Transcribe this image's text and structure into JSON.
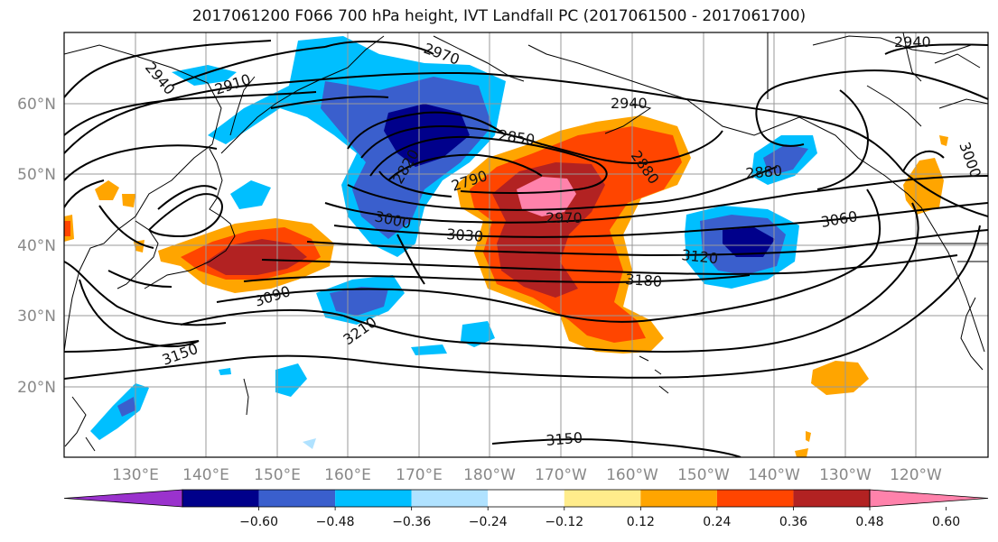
{
  "title": "2017061200 F066 700 hPa height, IVT Landfall PC (2017061500 - 2017061700)",
  "map": {
    "lat_labels": [
      "60°N",
      "50°N",
      "40°N",
      "30°N",
      "20°N"
    ],
    "lon_labels": [
      "130°E",
      "140°E",
      "150°E",
      "160°E",
      "170°E",
      "180°W",
      "170°W",
      "160°W",
      "150°W",
      "140°W",
      "130°W",
      "120°W"
    ],
    "contour_labels": [
      "2970",
      "2910",
      "2940",
      "2940",
      "2940",
      "2850",
      "2820",
      "2790",
      "2970",
      "2880",
      "2880",
      "3000",
      "3030",
      "3000",
      "3060",
      "3120",
      "3180",
      "3090",
      "3210",
      "3150",
      "3150"
    ]
  },
  "colorbar": {
    "colors": [
      "#9a32cd",
      "#00008b",
      "#3a5fcd",
      "#00bfff",
      "#b0e2ff",
      "#ffffff",
      "#ffec8b",
      "#ffa500",
      "#ff4500",
      "#b22222",
      "#ff82ab"
    ],
    "tick_labels": [
      "-0.60",
      "-0.48",
      "-0.36",
      "-0.24",
      "-0.12",
      "0.12",
      "0.24",
      "0.36",
      "0.48",
      "0.60"
    ]
  }
}
